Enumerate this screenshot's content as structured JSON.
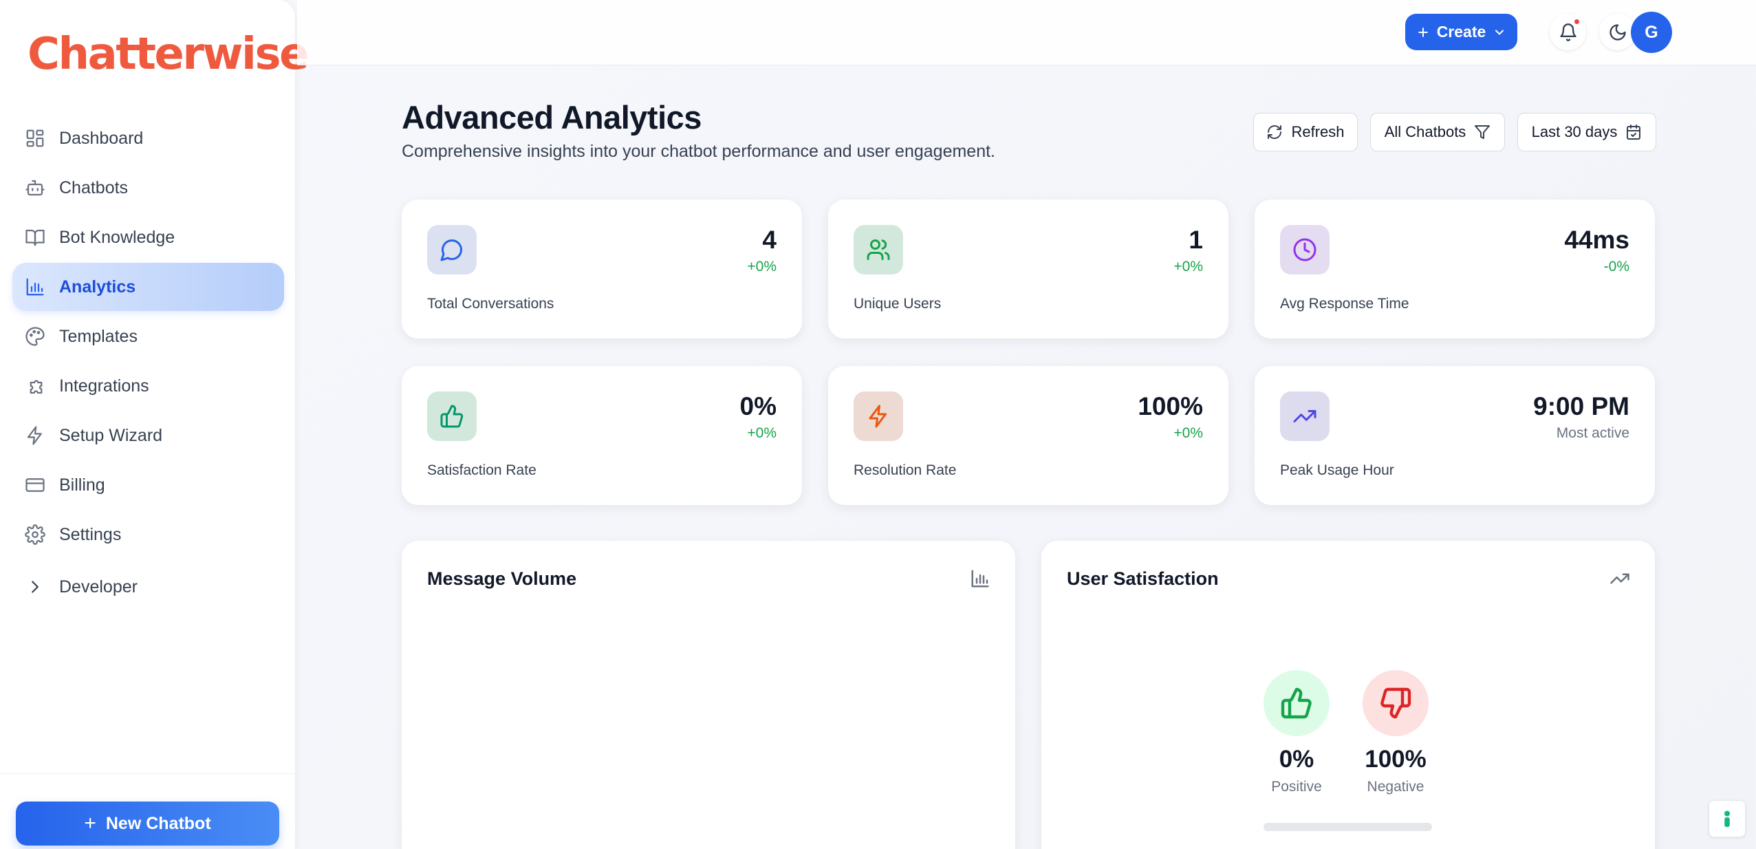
{
  "app": {
    "brand": "Chatterwise"
  },
  "sidebar": {
    "items": [
      {
        "label": "Dashboard",
        "icon": "dashboard-icon"
      },
      {
        "label": "Chatbots",
        "icon": "bot-icon"
      },
      {
        "label": "Bot Knowledge",
        "icon": "book-icon"
      },
      {
        "label": "Analytics",
        "icon": "bar-chart-icon",
        "active": true
      },
      {
        "label": "Templates",
        "icon": "palette-icon"
      },
      {
        "label": "Integrations",
        "icon": "puzzle-icon"
      },
      {
        "label": "Setup Wizard",
        "icon": "lightning-icon"
      },
      {
        "label": "Billing",
        "icon": "credit-card-icon"
      },
      {
        "label": "Settings",
        "icon": "gear-icon"
      },
      {
        "label": "Developer",
        "icon": "chevron-right-icon"
      }
    ],
    "new_chatbot_label": "New Chatbot"
  },
  "topbar": {
    "create_label": "Create",
    "avatar_initial": "G",
    "has_notification": true
  },
  "header": {
    "title": "Advanced Analytics",
    "subtitle": "Comprehensive insights into your chatbot performance and user engagement.",
    "refresh_label": "Refresh",
    "chatbot_filter": "All Chatbots",
    "date_range": "Last 30 days"
  },
  "stats": [
    {
      "label": "Total Conversations",
      "value": "4",
      "change": "+0%",
      "icon": "message-circle-icon"
    },
    {
      "label": "Unique Users",
      "value": "1",
      "change": "+0%",
      "icon": "users-icon"
    },
    {
      "label": "Avg Response Time",
      "value": "44ms",
      "change": "-0%",
      "icon": "clock-icon"
    },
    {
      "label": "Satisfaction Rate",
      "value": "0%",
      "change": "+0%",
      "icon": "thumbs-up-icon"
    },
    {
      "label": "Resolution Rate",
      "value": "100%",
      "change": "+0%",
      "icon": "lightning-icon"
    },
    {
      "label": "Peak Usage Hour",
      "value": "9:00 PM",
      "change": "Most active",
      "icon": "trending-up-icon"
    }
  ],
  "panels": {
    "message_volume": {
      "title": "Message Volume",
      "icon": "bar-chart-icon"
    },
    "user_satisfaction": {
      "title": "User Satisfaction",
      "icon": "trending-up-icon",
      "positive_value": "0%",
      "positive_label": "Positive",
      "negative_value": "100%",
      "negative_label": "Negative",
      "positive_fraction": 0
    }
  },
  "colors": {
    "brand": "#ef5a3f",
    "primary": "#2563eb",
    "positive": "#16a34a",
    "negative": "#dc2626"
  }
}
